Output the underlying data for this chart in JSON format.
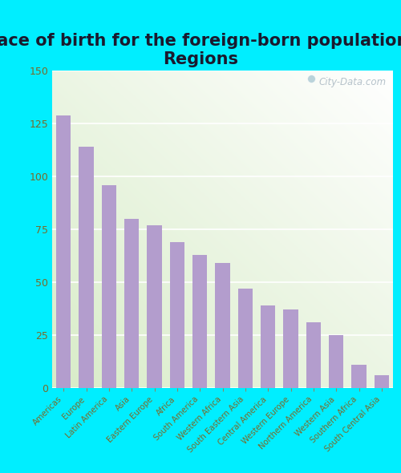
{
  "title": "Place of birth for the foreign-born population -\nRegions",
  "categories": [
    "Americas",
    "Europe",
    "Latin America",
    "Asia",
    "Eastern Europe",
    "Africa",
    "South America",
    "Western Africa",
    "South Eastern Asia",
    "Central America",
    "Western Europe",
    "Northern America",
    "Western Asia",
    "Southern Africa",
    "South Central Asia"
  ],
  "values": [
    129,
    114,
    96,
    80,
    77,
    69,
    63,
    59,
    47,
    39,
    37,
    31,
    25,
    11,
    6
  ],
  "bar_color": "#b39dcd",
  "ylim": [
    0,
    150
  ],
  "yticks": [
    0,
    25,
    50,
    75,
    100,
    125,
    150
  ],
  "background_outer": "#00eeff",
  "grid_color": "#ffffff",
  "tick_color": "#7a6a2a",
  "ytick_color": "#7a6a2a",
  "watermark_text": "City-Data.com",
  "title_fontsize": 15,
  "title_color": "#1a1a2e",
  "figsize": [
    5.0,
    5.9
  ]
}
